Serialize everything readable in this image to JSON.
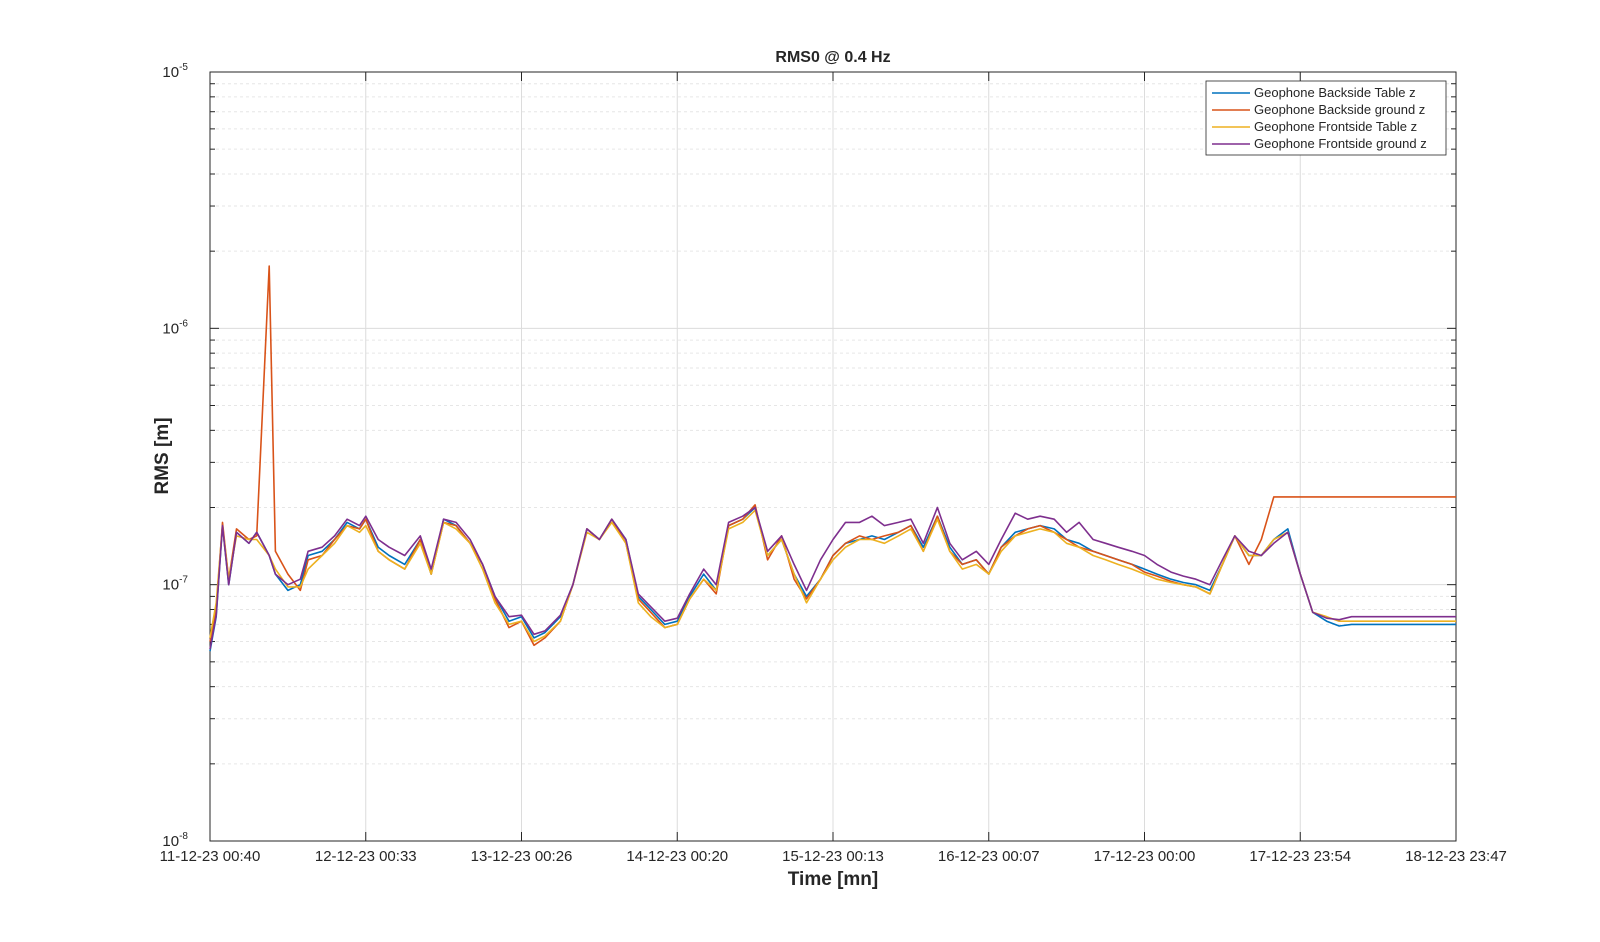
{
  "chart_data": {
    "type": "line",
    "title": "RMS0 @ 0.4 Hz",
    "xlabel": "Time [mn]",
    "ylabel": "RMS [m]",
    "yscale": "log",
    "ylim": [
      1e-08,
      1e-05
    ],
    "xlim": [
      0,
      8
    ],
    "grid": true,
    "legend_position": "top-right",
    "x_tick_labels": [
      "11-12-23 00:40",
      "12-12-23 00:33",
      "13-12-23 00:26",
      "14-12-23 00:20",
      "15-12-23 00:13",
      "16-12-23 00:07",
      "17-12-23 00:00",
      "17-12-23 23:54",
      "18-12-23 23:47"
    ],
    "y_ticks": [
      {
        "base": "10",
        "exp": "-8",
        "value": 1e-08
      },
      {
        "base": "10",
        "exp": "-7",
        "value": 1e-07
      },
      {
        "base": "10",
        "exp": "-6",
        "value": 1e-06
      },
      {
        "base": "10",
        "exp": "-5",
        "value": 1e-05
      }
    ],
    "x": [
      0,
      0.04,
      0.08,
      0.12,
      0.17,
      0.25,
      0.3,
      0.38,
      0.42,
      0.5,
      0.58,
      0.63,
      0.72,
      0.8,
      0.88,
      0.96,
      1.0,
      1.08,
      1.15,
      1.25,
      1.35,
      1.42,
      1.5,
      1.58,
      1.67,
      1.75,
      1.83,
      1.92,
      2.0,
      2.08,
      2.15,
      2.25,
      2.33,
      2.42,
      2.5,
      2.58,
      2.67,
      2.75,
      2.83,
      2.92,
      3.0,
      3.08,
      3.17,
      3.25,
      3.33,
      3.42,
      3.5,
      3.58,
      3.67,
      3.75,
      3.83,
      3.92,
      4.0,
      4.08,
      4.17,
      4.25,
      4.33,
      4.42,
      4.5,
      4.58,
      4.67,
      4.75,
      4.83,
      4.92,
      5.0,
      5.08,
      5.17,
      5.25,
      5.33,
      5.42,
      5.5,
      5.58,
      5.67,
      5.75,
      5.83,
      5.92,
      6.0,
      6.08,
      6.17,
      6.25,
      6.33,
      6.42,
      6.5,
      6.58,
      6.67,
      6.75,
      6.83,
      6.92,
      7.0,
      7.08,
      7.17,
      7.25,
      7.33,
      7.42,
      7.5,
      7.58,
      7.67,
      7.75,
      7.83,
      7.92,
      8.0
    ],
    "series": [
      {
        "name": "Geophone Backside Table z",
        "color": "#0072BD",
        "values": [
          5.5e-08,
          7.5e-08,
          1.7e-07,
          1e-07,
          1.6e-07,
          1.45e-07,
          1.6e-07,
          1.3e-07,
          1.1e-07,
          9.5e-08,
          1e-07,
          1.3e-07,
          1.35e-07,
          1.5e-07,
          1.75e-07,
          1.65e-07,
          1.8e-07,
          1.4e-07,
          1.3e-07,
          1.2e-07,
          1.5e-07,
          1.1e-07,
          1.8e-07,
          1.7e-07,
          1.45e-07,
          1.2e-07,
          9e-08,
          7.2e-08,
          7.5e-08,
          6.2e-08,
          6.5e-08,
          7.5e-08,
          1e-07,
          1.65e-07,
          1.5e-07,
          1.8e-07,
          1.5e-07,
          9e-08,
          8e-08,
          7e-08,
          7.2e-08,
          9e-08,
          1.1e-07,
          9.5e-08,
          1.7e-07,
          1.8e-07,
          2e-07,
          1.3e-07,
          1.5e-07,
          1.1e-07,
          9e-08,
          1.05e-07,
          1.3e-07,
          1.45e-07,
          1.5e-07,
          1.55e-07,
          1.5e-07,
          1.6e-07,
          1.7e-07,
          1.4e-07,
          1.85e-07,
          1.4e-07,
          1.2e-07,
          1.25e-07,
          1.1e-07,
          1.4e-07,
          1.6e-07,
          1.65e-07,
          1.7e-07,
          1.65e-07,
          1.5e-07,
          1.45e-07,
          1.35e-07,
          1.3e-07,
          1.25e-07,
          1.2e-07,
          1.15e-07,
          1.1e-07,
          1.05e-07,
          1.02e-07,
          1e-07,
          9.5e-08,
          1.2e-07,
          1.55e-07,
          1.3e-07,
          1.3e-07,
          1.5e-07,
          1.65e-07,
          1.1e-07,
          7.8e-08,
          7.2e-08,
          6.9e-08,
          7e-08,
          7e-08,
          7e-08,
          7e-08,
          7e-08,
          7e-08,
          7e-08,
          7e-08,
          7e-08
        ]
      },
      {
        "name": "Geophone Backside ground z",
        "color": "#D95319",
        "values": [
          6e-08,
          8e-08,
          1.75e-07,
          1.05e-07,
          1.65e-07,
          1.5e-07,
          1.55e-07,
          1.75e-06,
          1.35e-07,
          1.1e-07,
          9.5e-08,
          1.25e-07,
          1.3e-07,
          1.5e-07,
          1.7e-07,
          1.65e-07,
          1.8e-07,
          1.35e-07,
          1.25e-07,
          1.15e-07,
          1.5e-07,
          1.1e-07,
          1.75e-07,
          1.7e-07,
          1.45e-07,
          1.2e-07,
          8.8e-08,
          6.8e-08,
          7.2e-08,
          5.8e-08,
          6.2e-08,
          7.2e-08,
          1e-07,
          1.65e-07,
          1.5e-07,
          1.8e-07,
          1.45e-07,
          8.8e-08,
          7.8e-08,
          6.8e-08,
          7e-08,
          8.8e-08,
          1.05e-07,
          9.2e-08,
          1.7e-07,
          1.8e-07,
          2.05e-07,
          1.25e-07,
          1.55e-07,
          1.05e-07,
          8.8e-08,
          1.05e-07,
          1.3e-07,
          1.45e-07,
          1.55e-07,
          1.5e-07,
          1.55e-07,
          1.6e-07,
          1.7e-07,
          1.35e-07,
          1.85e-07,
          1.35e-07,
          1.2e-07,
          1.25e-07,
          1.1e-07,
          1.4e-07,
          1.55e-07,
          1.65e-07,
          1.7e-07,
          1.6e-07,
          1.5e-07,
          1.4e-07,
          1.35e-07,
          1.3e-07,
          1.25e-07,
          1.2e-07,
          1.12e-07,
          1.08e-07,
          1.03e-07,
          1e-07,
          9.8e-08,
          9.2e-08,
          1.2e-07,
          1.55e-07,
          1.2e-07,
          1.5e-07,
          2.2e-07,
          2.2e-07,
          2.2e-07,
          2.2e-07,
          2.2e-07,
          2.2e-07,
          2.2e-07,
          2.2e-07,
          2.2e-07,
          2.2e-07,
          2.2e-07,
          2.2e-07,
          2.2e-07,
          2.2e-07,
          2.2e-07
        ]
      },
      {
        "name": "Geophone Frontside Table z",
        "color": "#EDB120",
        "values": [
          6.2e-08,
          8.5e-08,
          1.7e-07,
          1.05e-07,
          1.55e-07,
          1.5e-07,
          1.5e-07,
          1.3e-07,
          1.15e-07,
          9.8e-08,
          9.8e-08,
          1.15e-07,
          1.3e-07,
          1.45e-07,
          1.7e-07,
          1.6e-07,
          1.7e-07,
          1.35e-07,
          1.25e-07,
          1.15e-07,
          1.45e-07,
          1.1e-07,
          1.75e-07,
          1.65e-07,
          1.45e-07,
          1.15e-07,
          8.5e-08,
          7e-08,
          7.2e-08,
          6e-08,
          6.3e-08,
          7.2e-08,
          1e-07,
          1.6e-07,
          1.5e-07,
          1.75e-07,
          1.45e-07,
          8.5e-08,
          7.5e-08,
          6.8e-08,
          7e-08,
          8.8e-08,
          1.05e-07,
          9.5e-08,
          1.65e-07,
          1.75e-07,
          1.95e-07,
          1.3e-07,
          1.5e-07,
          1.1e-07,
          8.5e-08,
          1.05e-07,
          1.25e-07,
          1.4e-07,
          1.5e-07,
          1.5e-07,
          1.45e-07,
          1.55e-07,
          1.65e-07,
          1.35e-07,
          1.8e-07,
          1.35e-07,
          1.15e-07,
          1.2e-07,
          1.1e-07,
          1.35e-07,
          1.55e-07,
          1.6e-07,
          1.65e-07,
          1.6e-07,
          1.45e-07,
          1.4e-07,
          1.3e-07,
          1.25e-07,
          1.2e-07,
          1.15e-07,
          1.1e-07,
          1.05e-07,
          1.02e-07,
          1e-07,
          9.8e-08,
          9.2e-08,
          1.2e-07,
          1.55e-07,
          1.3e-07,
          1.3e-07,
          1.5e-07,
          1.6e-07,
          1.1e-07,
          7.8e-08,
          7.5e-08,
          7.2e-08,
          7.2e-08,
          7.2e-08,
          7.2e-08,
          7.2e-08,
          7.2e-08,
          7.2e-08,
          7.2e-08,
          7.2e-08,
          7.2e-08
        ]
      },
      {
        "name": "Geophone Frontside ground z",
        "color": "#7E2F8E",
        "values": [
          5.6e-08,
          7.6e-08,
          1.7e-07,
          1e-07,
          1.6e-07,
          1.45e-07,
          1.6e-07,
          1.3e-07,
          1.1e-07,
          1e-07,
          1.05e-07,
          1.35e-07,
          1.4e-07,
          1.55e-07,
          1.8e-07,
          1.7e-07,
          1.85e-07,
          1.5e-07,
          1.4e-07,
          1.3e-07,
          1.55e-07,
          1.15e-07,
          1.8e-07,
          1.75e-07,
          1.5e-07,
          1.2e-07,
          9e-08,
          7.5e-08,
          7.6e-08,
          6.4e-08,
          6.6e-08,
          7.6e-08,
          1e-07,
          1.65e-07,
          1.5e-07,
          1.8e-07,
          1.5e-07,
          9.2e-08,
          8.2e-08,
          7.2e-08,
          7.4e-08,
          9.2e-08,
          1.15e-07,
          1e-07,
          1.75e-07,
          1.85e-07,
          2e-07,
          1.35e-07,
          1.55e-07,
          1.2e-07,
          9.5e-08,
          1.25e-07,
          1.5e-07,
          1.75e-07,
          1.75e-07,
          1.85e-07,
          1.7e-07,
          1.75e-07,
          1.8e-07,
          1.45e-07,
          2e-07,
          1.45e-07,
          1.25e-07,
          1.35e-07,
          1.2e-07,
          1.5e-07,
          1.9e-07,
          1.8e-07,
          1.85e-07,
          1.8e-07,
          1.6e-07,
          1.75e-07,
          1.5e-07,
          1.45e-07,
          1.4e-07,
          1.35e-07,
          1.3e-07,
          1.2e-07,
          1.12e-07,
          1.08e-07,
          1.05e-07,
          1e-07,
          1.25e-07,
          1.55e-07,
          1.35e-07,
          1.3e-07,
          1.45e-07,
          1.6e-07,
          1.1e-07,
          7.8e-08,
          7.4e-08,
          7.3e-08,
          7.5e-08,
          7.5e-08,
          7.5e-08,
          7.5e-08,
          7.5e-08,
          7.5e-08,
          7.5e-08,
          7.5e-08,
          7.5e-08
        ]
      }
    ]
  }
}
